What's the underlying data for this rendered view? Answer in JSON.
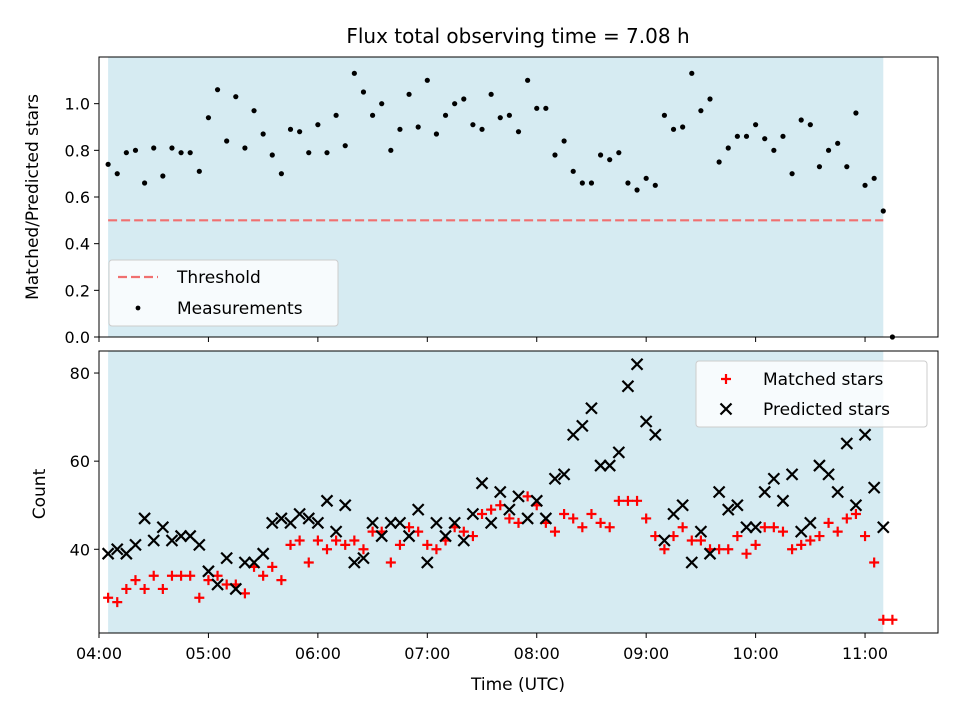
{
  "chart_data": [
    {
      "type": "scatter",
      "title": "Flux total observing time = 7.08 h",
      "xlabel": "",
      "ylabel": "Matched/Predicted stars",
      "xlim": [
        "04:00",
        "11:40"
      ],
      "ylim": [
        0,
        1.2
      ],
      "yticks": [
        0.0,
        0.2,
        0.4,
        0.6,
        0.8,
        1.0
      ],
      "ytick_labels": [
        "0.0",
        "0.2",
        "0.4",
        "0.6",
        "0.8",
        "1.0"
      ],
      "observing_window": [
        "04:05",
        "11:10"
      ],
      "threshold": {
        "name": "Threshold",
        "value": 0.5,
        "x": [
          "04:05",
          "11:10"
        ],
        "color": "#f07070"
      },
      "series": [
        {
          "name": "Measurements",
          "color": "#000000",
          "x": [
            "04:05",
            "04:10",
            "04:15",
            "04:20",
            "04:25",
            "04:30",
            "04:35",
            "04:40",
            "04:45",
            "04:50",
            "04:55",
            "05:00",
            "05:05",
            "05:10",
            "05:15",
            "05:20",
            "05:25",
            "05:30",
            "05:35",
            "05:40",
            "05:45",
            "05:50",
            "05:55",
            "06:00",
            "06:05",
            "06:10",
            "06:15",
            "06:20",
            "06:25",
            "06:30",
            "06:35",
            "06:40",
            "06:45",
            "06:50",
            "06:55",
            "07:00",
            "07:05",
            "07:10",
            "07:15",
            "07:20",
            "07:25",
            "07:30",
            "07:35",
            "07:40",
            "07:45",
            "07:50",
            "07:55",
            "08:00",
            "08:05",
            "08:10",
            "08:15",
            "08:20",
            "08:25",
            "08:30",
            "08:35",
            "08:40",
            "08:45",
            "08:50",
            "08:55",
            "09:00",
            "09:05",
            "09:10",
            "09:15",
            "09:20",
            "09:25",
            "09:30",
            "09:35",
            "09:40",
            "09:45",
            "09:50",
            "09:55",
            "10:00",
            "10:05",
            "10:10",
            "10:15",
            "10:20",
            "10:25",
            "10:30",
            "10:35",
            "10:40",
            "10:45",
            "10:50",
            "10:55",
            "11:00",
            "11:05",
            "11:10",
            "11:15"
          ],
          "y": [
            0.74,
            0.7,
            0.79,
            0.8,
            0.66,
            0.81,
            0.69,
            0.81,
            0.79,
            0.79,
            0.71,
            0.94,
            1.06,
            0.84,
            1.03,
            0.81,
            0.97,
            0.87,
            0.78,
            0.7,
            0.89,
            0.88,
            0.79,
            0.91,
            0.79,
            0.95,
            0.82,
            1.13,
            1.05,
            0.95,
            1.0,
            0.8,
            0.89,
            1.04,
            0.9,
            1.1,
            0.87,
            0.95,
            1.0,
            1.02,
            0.91,
            0.89,
            1.04,
            0.94,
            0.95,
            0.88,
            1.1,
            0.98,
            0.98,
            0.78,
            0.84,
            0.71,
            0.66,
            0.66,
            0.78,
            0.76,
            0.79,
            0.66,
            0.63,
            0.68,
            0.65,
            0.95,
            0.89,
            0.9,
            1.13,
            0.97,
            1.02,
            0.75,
            0.81,
            0.86,
            0.86,
            0.91,
            0.85,
            0.8,
            0.86,
            0.7,
            0.93,
            0.91,
            0.73,
            0.8,
            0.83,
            0.73,
            0.96,
            0.65,
            0.68,
            0.54,
            0.0
          ]
        }
      ],
      "legend": "lower-left"
    },
    {
      "type": "scatter",
      "title": "",
      "xlabel": "Time (UTC)",
      "ylabel": "Count",
      "xlim": [
        "04:00",
        "11:40"
      ],
      "ylim": [
        21,
        85
      ],
      "yticks": [
        40,
        60,
        80
      ],
      "ytick_labels": [
        "40",
        "60",
        "80"
      ],
      "xticks": [
        "04:00",
        "05:00",
        "06:00",
        "07:00",
        "08:00",
        "09:00",
        "10:00",
        "11:00"
      ],
      "observing_window": [
        "04:05",
        "11:10"
      ],
      "series": [
        {
          "name": "Matched stars",
          "marker": "plus",
          "color": "#ff0000",
          "x": [
            "04:05",
            "04:10",
            "04:15",
            "04:20",
            "04:25",
            "04:30",
            "04:35",
            "04:40",
            "04:45",
            "04:50",
            "04:55",
            "05:00",
            "05:05",
            "05:10",
            "05:15",
            "05:20",
            "05:25",
            "05:30",
            "05:35",
            "05:40",
            "05:45",
            "05:50",
            "05:55",
            "06:00",
            "06:05",
            "06:10",
            "06:15",
            "06:20",
            "06:25",
            "06:30",
            "06:35",
            "06:40",
            "06:45",
            "06:50",
            "06:55",
            "07:00",
            "07:05",
            "07:10",
            "07:15",
            "07:20",
            "07:25",
            "07:30",
            "07:35",
            "07:40",
            "07:45",
            "07:50",
            "07:55",
            "08:00",
            "08:05",
            "08:10",
            "08:15",
            "08:20",
            "08:25",
            "08:30",
            "08:35",
            "08:40",
            "08:45",
            "08:50",
            "08:55",
            "09:00",
            "09:05",
            "09:10",
            "09:15",
            "09:20",
            "09:25",
            "09:30",
            "09:35",
            "09:40",
            "09:45",
            "09:50",
            "09:55",
            "10:00",
            "10:05",
            "10:10",
            "10:15",
            "10:20",
            "10:25",
            "10:30",
            "10:35",
            "10:40",
            "10:45",
            "10:50",
            "10:55",
            "11:00",
            "11:05",
            "11:10",
            "11:15"
          ],
          "y": [
            29,
            28,
            31,
            33,
            31,
            34,
            31,
            34,
            34,
            34,
            29,
            33,
            34,
            32,
            32,
            30,
            36,
            34,
            36,
            33,
            41,
            42,
            37,
            42,
            40,
            42,
            41,
            42,
            40,
            44,
            44,
            37,
            41,
            45,
            44,
            41,
            40,
            42,
            45,
            44,
            43,
            48,
            49,
            50,
            47,
            46,
            52,
            50,
            46,
            44,
            48,
            47,
            45,
            48,
            46,
            45,
            51,
            51,
            51,
            47,
            43,
            40,
            43,
            45,
            42,
            42,
            40,
            40,
            40,
            43,
            39,
            41,
            45,
            45,
            44,
            40,
            41,
            42,
            43,
            46,
            44,
            47,
            48,
            43,
            37,
            24,
            24
          ]
        },
        {
          "name": "Predicted stars",
          "marker": "x",
          "color": "#000000",
          "x": [
            "04:05",
            "04:10",
            "04:15",
            "04:20",
            "04:25",
            "04:30",
            "04:35",
            "04:40",
            "04:45",
            "04:50",
            "04:55",
            "05:00",
            "05:05",
            "05:10",
            "05:15",
            "05:20",
            "05:25",
            "05:30",
            "05:35",
            "05:40",
            "05:45",
            "05:50",
            "05:55",
            "06:00",
            "06:05",
            "06:10",
            "06:15",
            "06:20",
            "06:25",
            "06:30",
            "06:35",
            "06:40",
            "06:45",
            "06:50",
            "06:55",
            "07:00",
            "07:05",
            "07:10",
            "07:15",
            "07:20",
            "07:25",
            "07:30",
            "07:35",
            "07:40",
            "07:45",
            "07:50",
            "07:55",
            "08:00",
            "08:05",
            "08:10",
            "08:15",
            "08:20",
            "08:25",
            "08:30",
            "08:35",
            "08:40",
            "08:45",
            "08:50",
            "08:55",
            "09:00",
            "09:05",
            "09:10",
            "09:15",
            "09:20",
            "09:25",
            "09:30",
            "09:35",
            "09:40",
            "09:45",
            "09:50",
            "09:55",
            "10:00",
            "10:05",
            "10:10",
            "10:15",
            "10:20",
            "10:25",
            "10:30",
            "10:35",
            "10:40",
            "10:45",
            "10:50",
            "10:55",
            "11:00",
            "11:05",
            "11:10"
          ],
          "y": [
            39,
            40,
            39,
            41,
            47,
            42,
            45,
            42,
            43,
            43,
            41,
            35,
            32,
            38,
            31,
            37,
            37,
            39,
            46,
            47,
            46,
            48,
            47,
            46,
            51,
            44,
            50,
            37,
            38,
            46,
            43,
            46,
            46,
            43,
            49,
            37,
            46,
            43,
            46,
            42,
            48,
            55,
            46,
            53,
            49,
            52,
            47,
            51,
            47,
            56,
            57,
            66,
            68,
            72,
            59,
            59,
            62,
            77,
            82,
            69,
            66,
            42,
            48,
            50,
            37,
            44,
            39,
            53,
            49,
            50,
            45,
            45,
            53,
            56,
            51,
            57,
            44,
            46,
            59,
            57,
            53,
            64,
            50,
            66,
            54,
            45
          ]
        }
      ],
      "legend": "upper-right"
    }
  ]
}
